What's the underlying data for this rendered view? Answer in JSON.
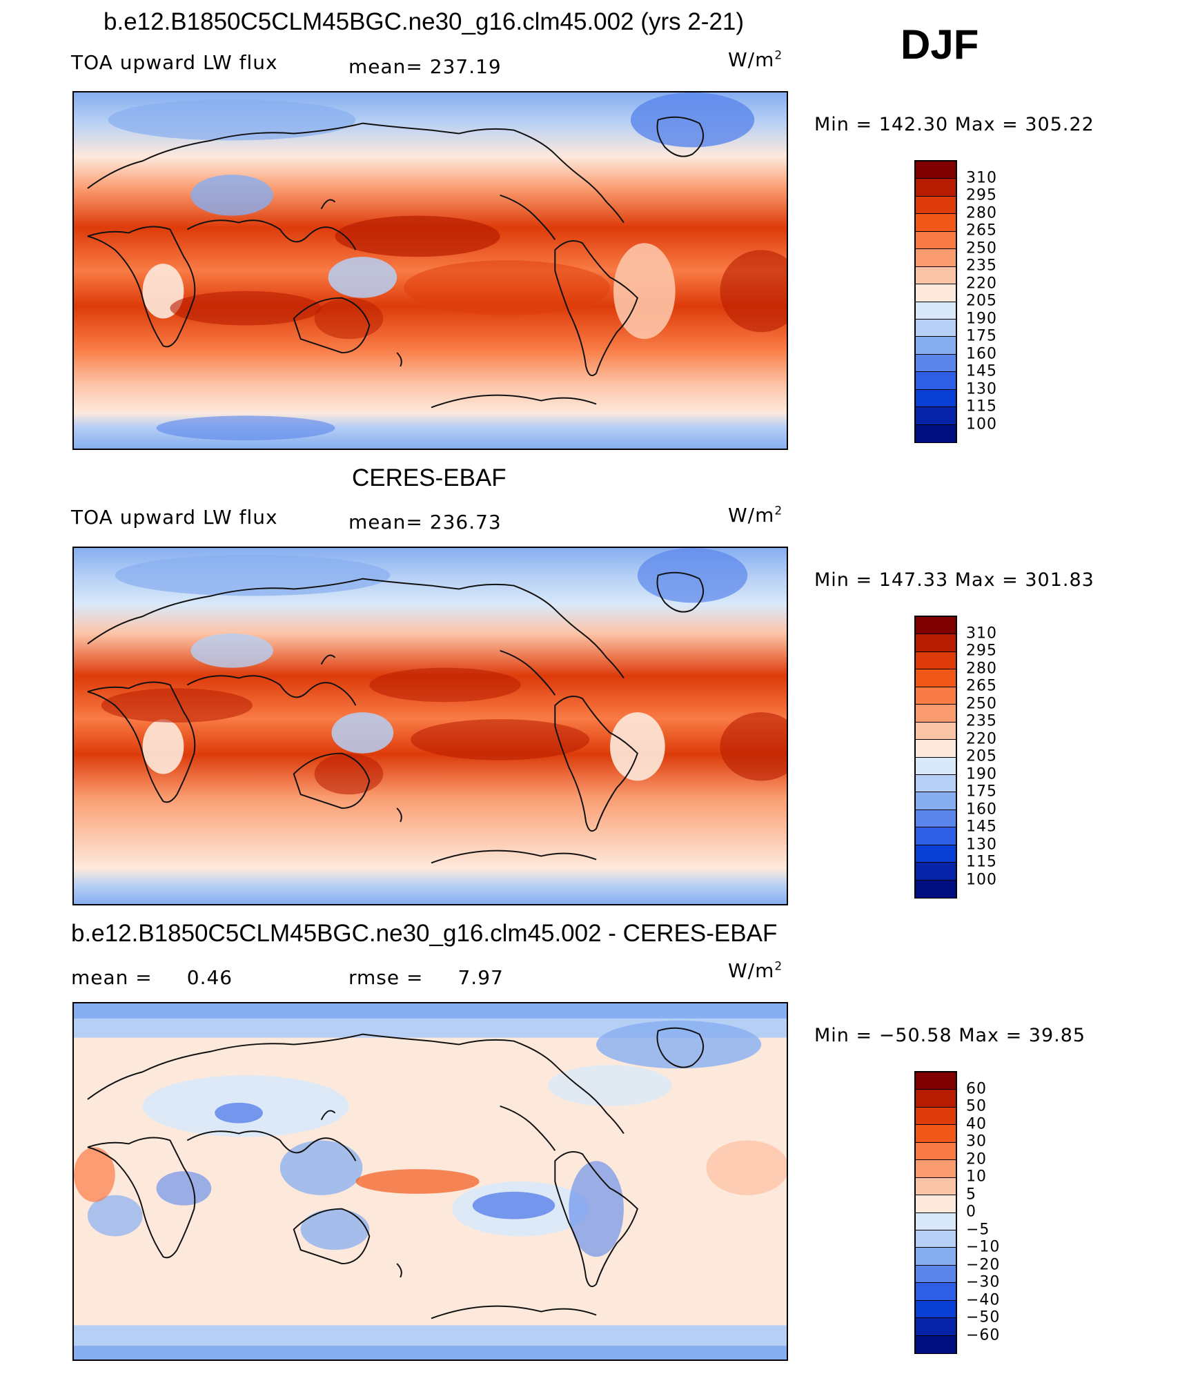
{
  "header": {
    "title": "b.e12.B1850C5CLM45BGC.ne30_g16.clm45.002 (yrs 2-21)",
    "season": "DJF"
  },
  "panels": [
    {
      "title": "",
      "variable": "TOA upward LW flux",
      "stat": "mean=  237.19",
      "unit_base": "W/m",
      "unit_exp": "2",
      "minmax": "Min  =  142.30  Max  =  305.22",
      "colorbar_labels": [
        "310",
        "295",
        "280",
        "265",
        "250",
        "235",
        "220",
        "205",
        "190",
        "175",
        "160",
        "145",
        "130",
        "115",
        "100"
      ]
    },
    {
      "title": "CERES-EBAF",
      "variable": "TOA upward LW flux",
      "stat": "mean=  236.73",
      "unit_base": "W/m",
      "unit_exp": "2",
      "minmax": "Min  =  147.33  Max  =  301.83",
      "colorbar_labels": [
        "310",
        "295",
        "280",
        "265",
        "250",
        "235",
        "220",
        "205",
        "190",
        "175",
        "160",
        "145",
        "130",
        "115",
        "100"
      ]
    },
    {
      "title": "b.e12.B1850C5CLM45BGC.ne30_g16.clm45.002 - CERES-EBAF",
      "mean_label": "mean  =",
      "mean_value": "0.46",
      "rmse_label": "rmse  =",
      "rmse_value": "7.97",
      "unit_base": "W/m",
      "unit_exp": "2",
      "minmax": "Min  =  −50.58  Max  =    39.85",
      "colorbar_labels": [
        "60",
        "50",
        "40",
        "30",
        "20",
        "10",
        "5",
        "0",
        "−5",
        "−10",
        "−20",
        "−30",
        "−40",
        "−50",
        "−60"
      ]
    }
  ],
  "colors": {
    "scale": [
      "#800000",
      "#b81c00",
      "#dd3b0a",
      "#f2571a",
      "#f97b45",
      "#fa9c70",
      "#fcc4a7",
      "#fde9dc",
      "#d9e9f9",
      "#b5cff5",
      "#87aef0",
      "#5a86eb",
      "#2e5fe6",
      "#0a3fd6",
      "#0524a8",
      "#000f80"
    ],
    "ocean_tropics": "#e04a1a",
    "coast": "#111111"
  }
}
